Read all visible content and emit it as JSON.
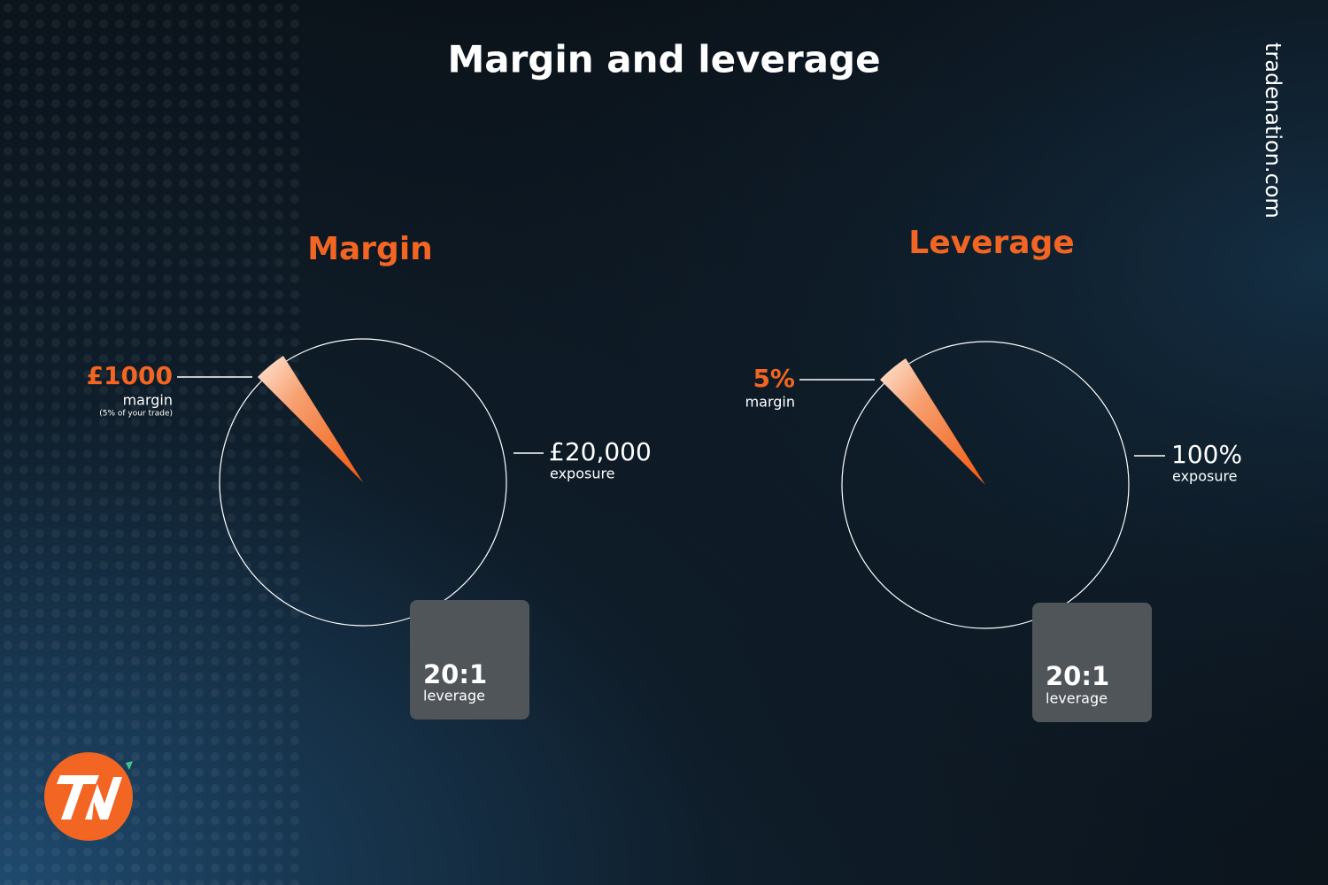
{
  "title": "Margin and leverage",
  "brand": "tradenation.com",
  "panels": [
    {
      "heading": "Margin",
      "slice": {
        "value": "£1000",
        "label": "margin",
        "note": "(5% of your trade)"
      },
      "whole": {
        "value": "£20,000",
        "label": "exposure"
      },
      "badge": {
        "value": "20:1",
        "label": "leverage"
      }
    },
    {
      "heading": "Leverage",
      "slice": {
        "value": "5%",
        "label": "margin"
      },
      "whole": {
        "value": "100%",
        "label": "exposure"
      },
      "badge": {
        "value": "20:1",
        "label": "leverage"
      }
    }
  ]
}
